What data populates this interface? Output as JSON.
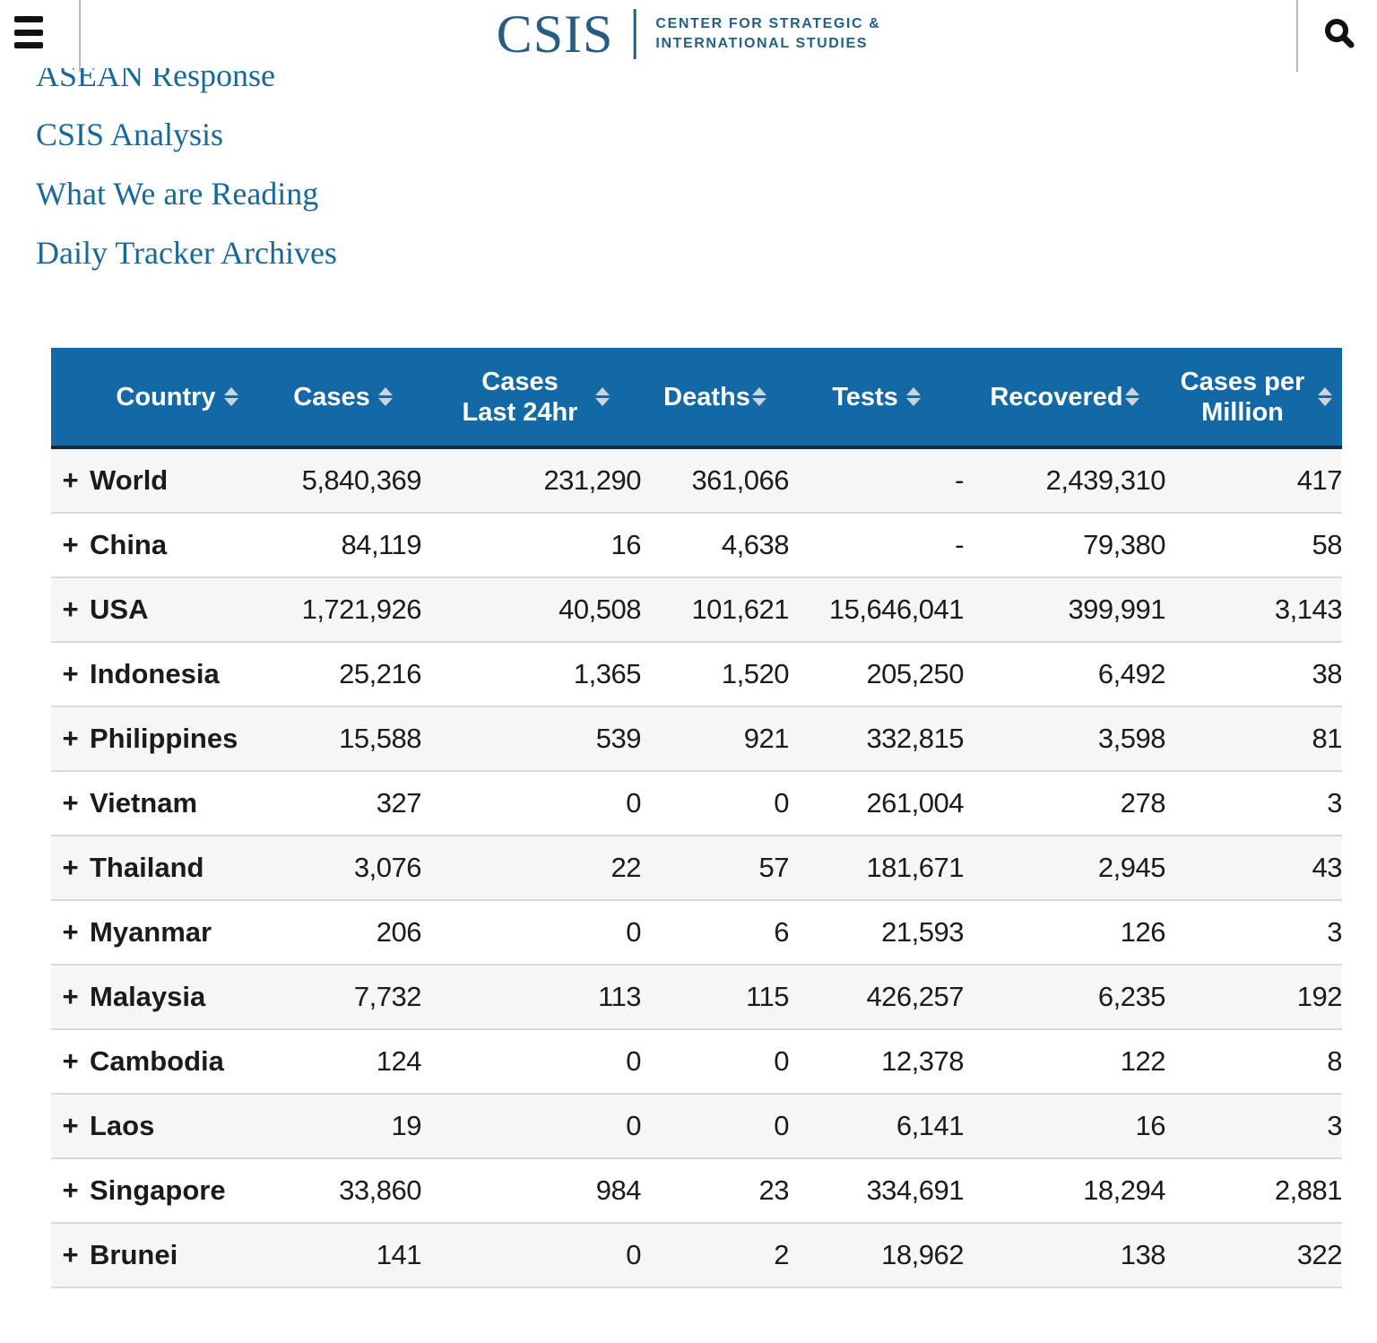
{
  "header": {
    "logo_text": "CSIS",
    "logo_tagline_line1": "CENTER FOR STRATEGIC &",
    "logo_tagline_line2": "INTERNATIONAL STUDIES"
  },
  "nav": {
    "items": [
      {
        "label": "ASEAN Response"
      },
      {
        "label": "CSIS Analysis"
      },
      {
        "label": "What We are Reading"
      },
      {
        "label": "Daily Tracker Archives"
      }
    ]
  },
  "table": {
    "expander_symbol": "+",
    "columns": [
      {
        "label": "Country",
        "sortable": true
      },
      {
        "label": "Cases",
        "sortable": true
      },
      {
        "label": "Cases Last 24hr",
        "sortable": true
      },
      {
        "label": "Deaths",
        "sortable": true
      },
      {
        "label": "Tests",
        "sortable": true
      },
      {
        "label": "Recovered",
        "sortable": true
      },
      {
        "label": "Cases per Million",
        "sortable": true
      }
    ],
    "rows": [
      {
        "country": "World",
        "cases": "5,840,369",
        "cases_24hr": "231,290",
        "deaths": "361,066",
        "tests": "-",
        "recovered": "2,439,310",
        "cases_per_million": "417"
      },
      {
        "country": "China",
        "cases": "84,119",
        "cases_24hr": "16",
        "deaths": "4,638",
        "tests": "-",
        "recovered": "79,380",
        "cases_per_million": "58"
      },
      {
        "country": "USA",
        "cases": "1,721,926",
        "cases_24hr": "40,508",
        "deaths": "101,621",
        "tests": "15,646,041",
        "recovered": "399,991",
        "cases_per_million": "3,143"
      },
      {
        "country": "Indonesia",
        "cases": "25,216",
        "cases_24hr": "1,365",
        "deaths": "1,520",
        "tests": "205,250",
        "recovered": "6,492",
        "cases_per_million": "38"
      },
      {
        "country": "Philippines",
        "cases": "15,588",
        "cases_24hr": "539",
        "deaths": "921",
        "tests": "332,815",
        "recovered": "3,598",
        "cases_per_million": "81"
      },
      {
        "country": "Vietnam",
        "cases": "327",
        "cases_24hr": "0",
        "deaths": "0",
        "tests": "261,004",
        "recovered": "278",
        "cases_per_million": "3"
      },
      {
        "country": "Thailand",
        "cases": "3,076",
        "cases_24hr": "22",
        "deaths": "57",
        "tests": "181,671",
        "recovered": "2,945",
        "cases_per_million": "43"
      },
      {
        "country": "Myanmar",
        "cases": "206",
        "cases_24hr": "0",
        "deaths": "6",
        "tests": "21,593",
        "recovered": "126",
        "cases_per_million": "3"
      },
      {
        "country": "Malaysia",
        "cases": "7,732",
        "cases_24hr": "113",
        "deaths": "115",
        "tests": "426,257",
        "recovered": "6,235",
        "cases_per_million": "192"
      },
      {
        "country": "Cambodia",
        "cases": "124",
        "cases_24hr": "0",
        "deaths": "0",
        "tests": "12,378",
        "recovered": "122",
        "cases_per_million": "8"
      },
      {
        "country": "Laos",
        "cases": "19",
        "cases_24hr": "0",
        "deaths": "0",
        "tests": "6,141",
        "recovered": "16",
        "cases_per_million": "3"
      },
      {
        "country": "Singapore",
        "cases": "33,860",
        "cases_24hr": "984",
        "deaths": "23",
        "tests": "334,691",
        "recovered": "18,294",
        "cases_per_million": "2,881"
      },
      {
        "country": "Brunei",
        "cases": "141",
        "cases_24hr": "0",
        "deaths": "2",
        "tests": "18,962",
        "recovered": "138",
        "cases_per_million": "322"
      }
    ]
  },
  "colors": {
    "table_header_bg": "#1369a6",
    "table_header_underline": "#13293d",
    "link_blue": "#17689b",
    "logo_blue": "#265d87",
    "expander_blue": "#2779b4",
    "row_alt_bg": "#f6f6f6",
    "row_border": "#d8d8d8"
  }
}
